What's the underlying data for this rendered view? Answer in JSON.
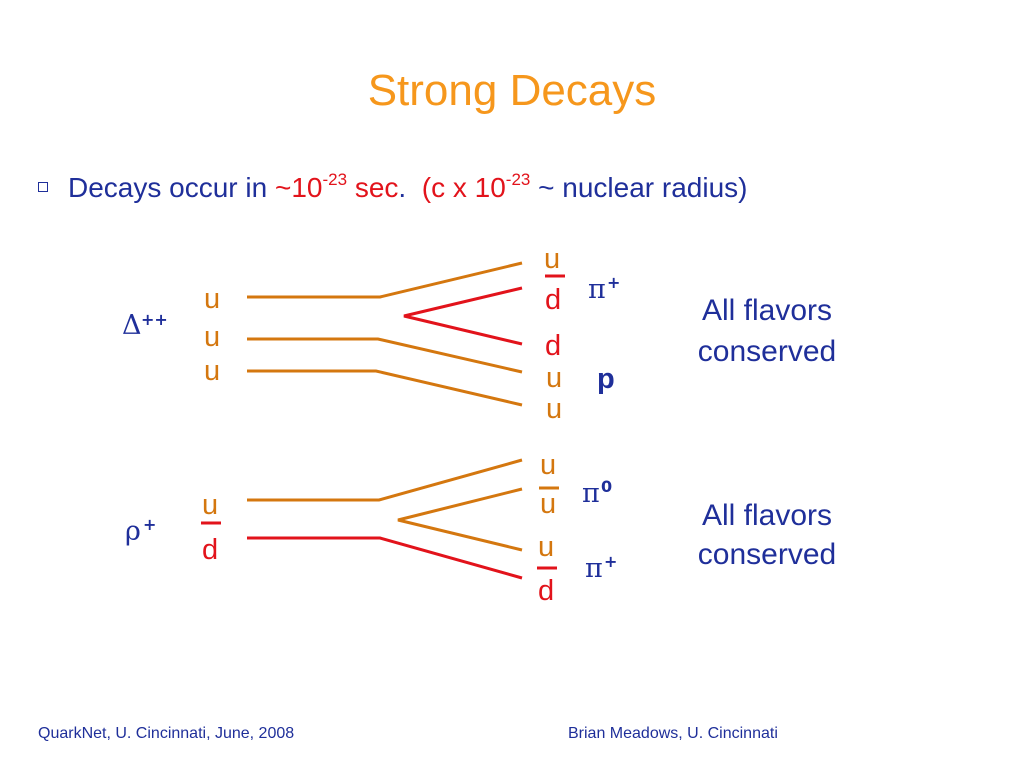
{
  "title": "Strong Decays",
  "bullet": {
    "text_a": "Decays occur in ",
    "text_b": "~10",
    "sup_b": "-23",
    "text_c": " sec",
    "text_d": ".  ",
    "text_e": "(c x 10",
    "sup_e": "-23",
    "text_f": " ~ nuclear radius)"
  },
  "delta_decay": {
    "parent_symbol": "Δ",
    "parent_charge": "++",
    "input_quarks": [
      "u",
      "u",
      "u"
    ],
    "output_quarks": [
      "u",
      "d",
      "d",
      "u",
      "u"
    ],
    "products": [
      {
        "symbol": "π",
        "charge": "+"
      },
      {
        "symbol": "p",
        "charge": ""
      }
    ],
    "note": [
      "All flavors",
      "conserved"
    ]
  },
  "rho_decay": {
    "parent_symbol": "ρ",
    "parent_charge": "+",
    "input_quarks": [
      "u",
      "d"
    ],
    "output_quarks": [
      "u",
      "u",
      "u",
      "d"
    ],
    "products": [
      {
        "symbol": "π",
        "charge": "0"
      },
      {
        "symbol": "π",
        "charge": "+"
      }
    ],
    "note": [
      "All flavors",
      "conserved"
    ]
  },
  "colors": {
    "title": "#f6971c",
    "text": "#1f2f9a",
    "quark_orange": "#d4770f",
    "quark_red": "#e2131b"
  },
  "footer": {
    "left": "QuarkNet, U. Cincinnati, June, 2008",
    "right": "Brian Meadows, U. Cincinnati"
  }
}
